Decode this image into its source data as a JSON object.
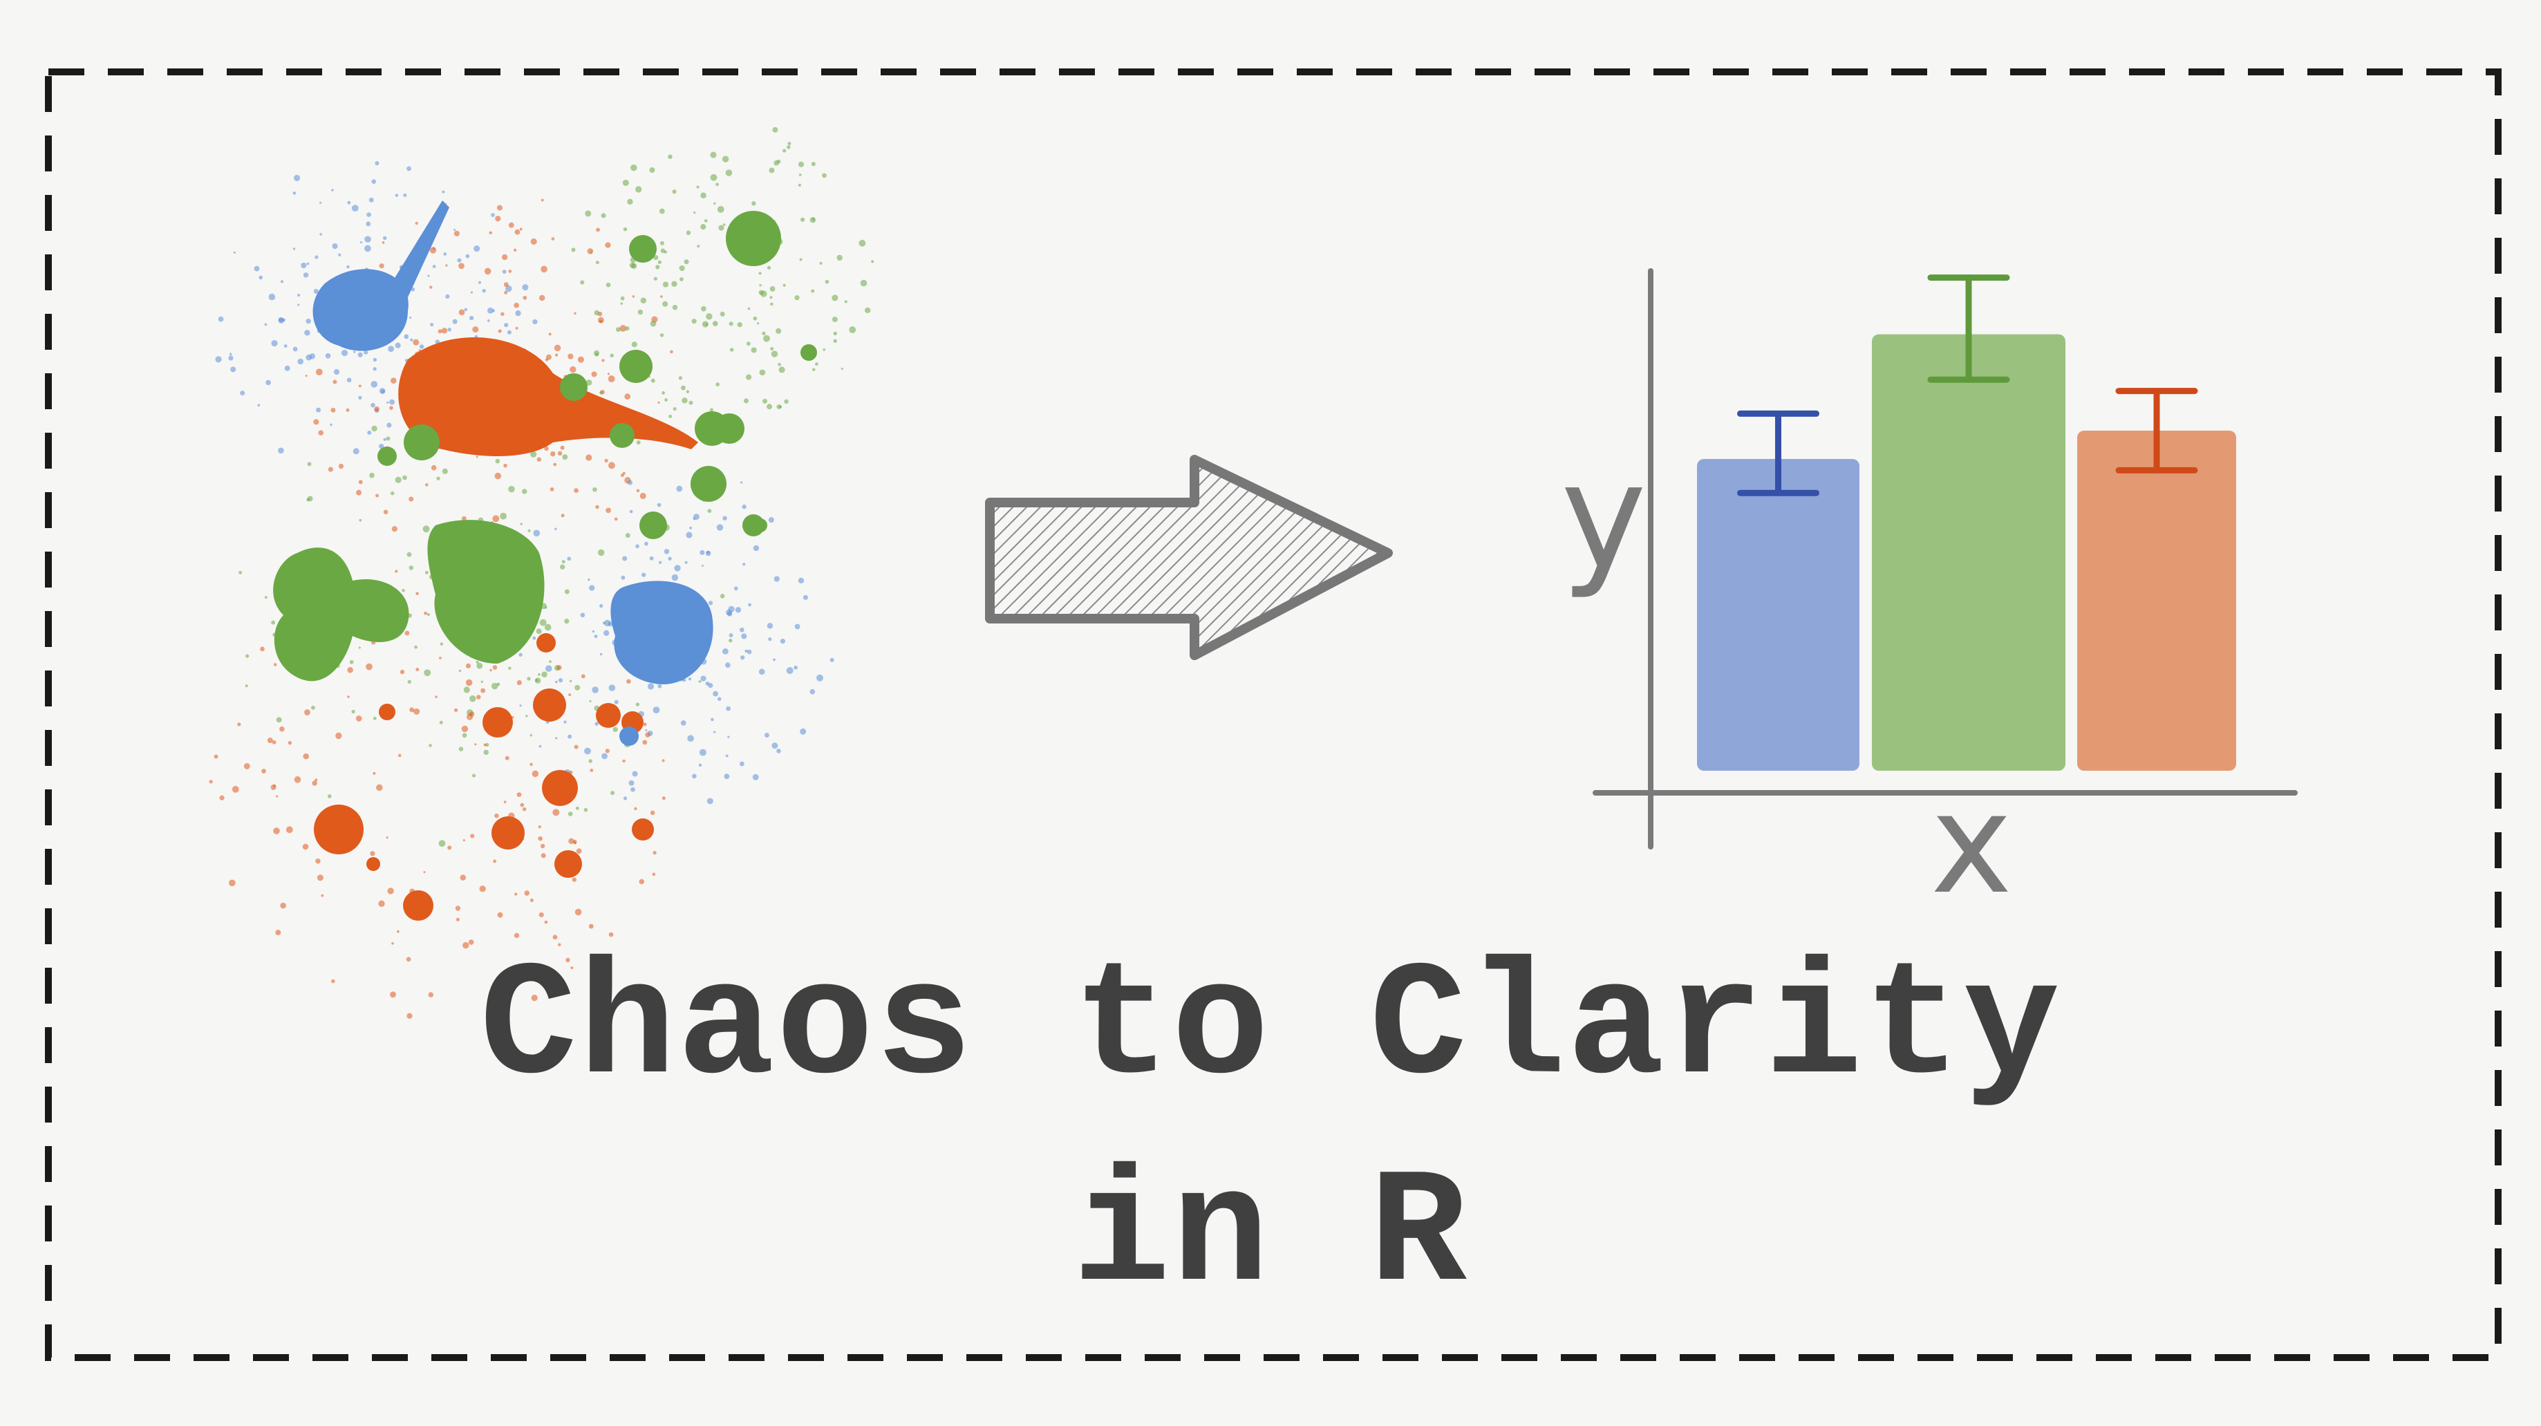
{
  "title": {
    "line1": "Chaos to Clarity",
    "line2": "in R"
  },
  "chart_data": {
    "type": "bar",
    "xlabel": "x",
    "ylabel": "y",
    "categories": [
      "",
      "",
      ""
    ],
    "values": [
      0.55,
      0.77,
      0.6
    ],
    "error_low": [
      0.49,
      0.69,
      0.53
    ],
    "error_high": [
      0.63,
      0.87,
      0.67
    ],
    "ylim": [
      0,
      1
    ],
    "colors": [
      "#8fa6d9",
      "#9bc17f",
      "#e39a72"
    ],
    "error_colors": [
      "#3450a8",
      "#5e9a3c",
      "#cf4a18"
    ],
    "grid": false
  },
  "colors": {
    "blue": "#5b8fd6",
    "orange": "#e05a1c",
    "green": "#6aa843",
    "ink": "#404040",
    "arrow": "#8a8a8a"
  },
  "icons": {
    "splatter": "paint-splatter",
    "arrow": "hatched-right-arrow"
  }
}
